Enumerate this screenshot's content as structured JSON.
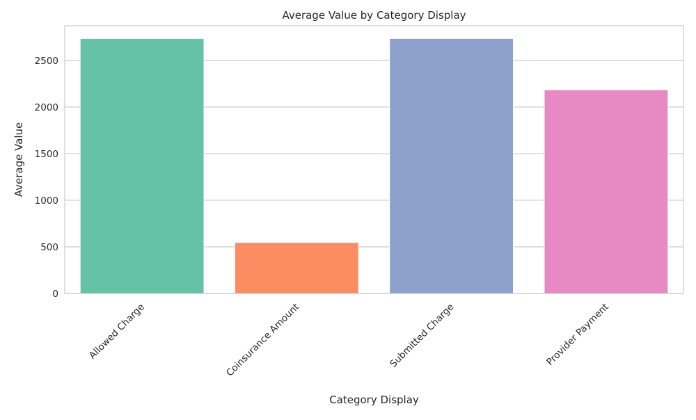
{
  "chart_data": {
    "type": "bar",
    "title": "Average Value by Category Display",
    "xlabel": "Category Display",
    "ylabel": "Average Value",
    "categories": [
      "Allowed Charge",
      "Coinsurance Amount",
      "Submitted Charge",
      "Provider Payment"
    ],
    "values": [
      2735,
      547,
      2735,
      2185
    ],
    "colors": [
      "#66c2a5",
      "#fc8d62",
      "#8da0cb",
      "#e78ac3"
    ],
    "ylim": [
      0,
      2872
    ],
    "yticks": [
      0,
      500,
      1000,
      1500,
      2000,
      2500
    ],
    "grid": "horizontal",
    "legend": "none"
  }
}
